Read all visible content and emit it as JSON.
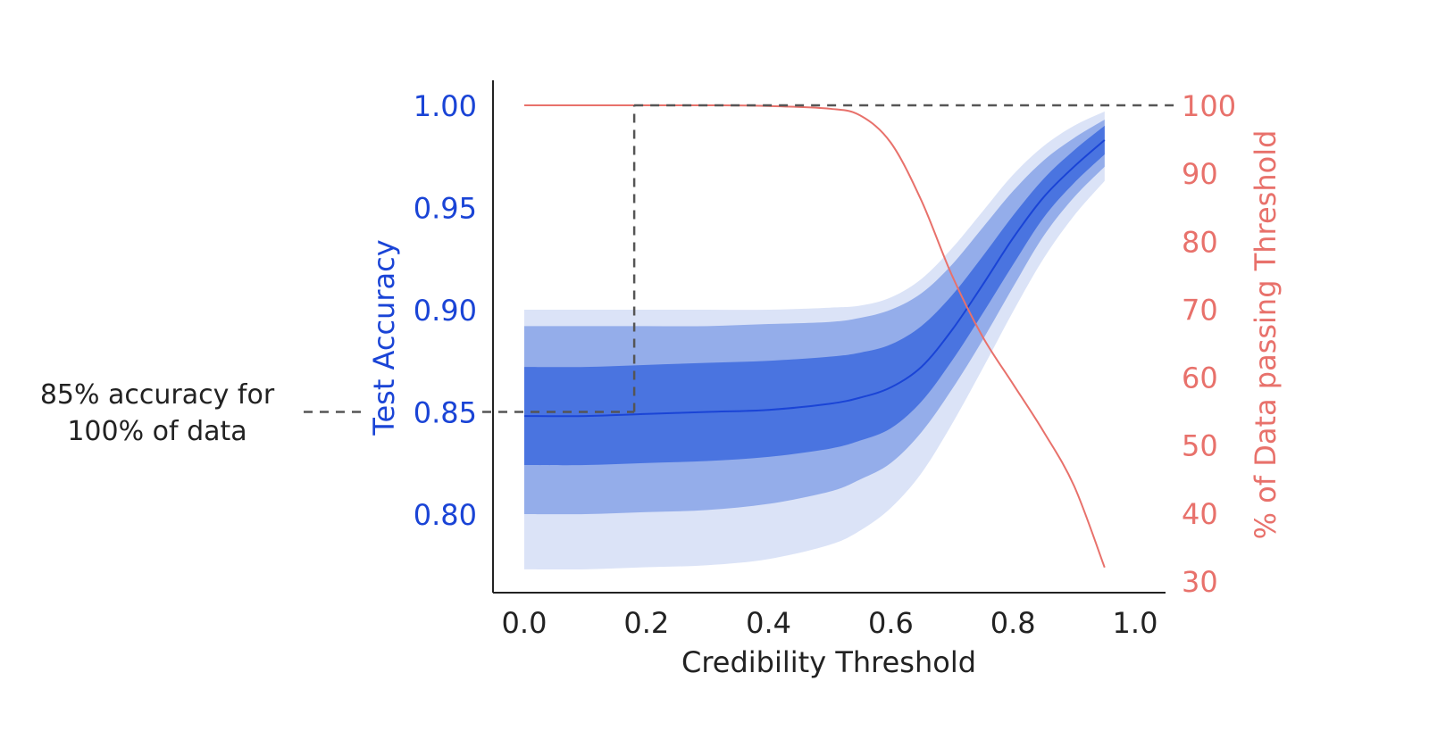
{
  "chart_data": {
    "type": "line",
    "xlabel": "Credibility Threshold",
    "ylabel_left": "Test Accuracy",
    "ylabel_right": "% of Data passing Threshold",
    "xlim": [
      0.0,
      1.0
    ],
    "ylim_left": [
      0.775,
      1.0
    ],
    "ylim_right": [
      30,
      100
    ],
    "x_ticks": [
      "0.0",
      "0.2",
      "0.4",
      "0.6",
      "0.8",
      "1.0"
    ],
    "x_tick_values": [
      0.0,
      0.2,
      0.4,
      0.6,
      0.8,
      1.0
    ],
    "y_left_ticks": [
      "0.80",
      "0.85",
      "0.90",
      "0.95",
      "1.00"
    ],
    "y_left_tick_values": [
      0.8,
      0.85,
      0.9,
      0.95,
      1.0
    ],
    "y_right_ticks": [
      "30",
      "40",
      "50",
      "60",
      "70",
      "80",
      "90",
      "100"
    ],
    "y_right_tick_values": [
      30,
      40,
      50,
      60,
      70,
      80,
      90,
      100
    ],
    "x": [
      0.0,
      0.1,
      0.2,
      0.3,
      0.4,
      0.5,
      0.55,
      0.6,
      0.65,
      0.7,
      0.75,
      0.8,
      0.85,
      0.9,
      0.95
    ],
    "accuracy_mean": [
      0.848,
      0.848,
      0.849,
      0.85,
      0.851,
      0.854,
      0.857,
      0.862,
      0.872,
      0.89,
      0.912,
      0.935,
      0.955,
      0.97,
      0.983
    ],
    "band_inner": {
      "lower": [
        0.824,
        0.824,
        0.825,
        0.826,
        0.828,
        0.832,
        0.836,
        0.842,
        0.855,
        0.875,
        0.898,
        0.922,
        0.945,
        0.962,
        0.976
      ],
      "upper": [
        0.872,
        0.872,
        0.873,
        0.874,
        0.875,
        0.877,
        0.879,
        0.883,
        0.892,
        0.907,
        0.926,
        0.946,
        0.964,
        0.978,
        0.99
      ]
    },
    "band_middle": {
      "lower": [
        0.8,
        0.8,
        0.801,
        0.802,
        0.805,
        0.811,
        0.817,
        0.825,
        0.84,
        0.861,
        0.885,
        0.911,
        0.936,
        0.955,
        0.97
      ],
      "upper": [
        0.892,
        0.892,
        0.892,
        0.892,
        0.893,
        0.894,
        0.896,
        0.9,
        0.908,
        0.922,
        0.94,
        0.958,
        0.973,
        0.984,
        0.993
      ]
    },
    "band_outer": {
      "lower": [
        0.773,
        0.773,
        0.774,
        0.775,
        0.778,
        0.785,
        0.792,
        0.803,
        0.82,
        0.844,
        0.871,
        0.899,
        0.925,
        0.946,
        0.963
      ],
      "upper": [
        0.9,
        0.9,
        0.9,
        0.9,
        0.9,
        0.901,
        0.902,
        0.906,
        0.915,
        0.93,
        0.948,
        0.966,
        0.98,
        0.99,
        0.997
      ]
    },
    "data_passing_pct": [
      100,
      100,
      100,
      100,
      99.9,
      99.5,
      98.5,
      94.5,
      86,
      75,
      66,
      59,
      52,
      44,
      32
    ],
    "reference_lines": {
      "accuracy_y": 0.85,
      "threshold_x": 0.18,
      "data_pct_y": 100
    },
    "annotation": [
      "85% accuracy for",
      "100% of data"
    ],
    "grid": false,
    "colors": {
      "accuracy": "#1a44d6",
      "band_inner": "#4a74e0",
      "band_middle": "#94adea",
      "band_outer": "#dbe3f7",
      "data_passing": "#e8716b",
      "axis": "#222222",
      "reference": "#555555"
    }
  }
}
